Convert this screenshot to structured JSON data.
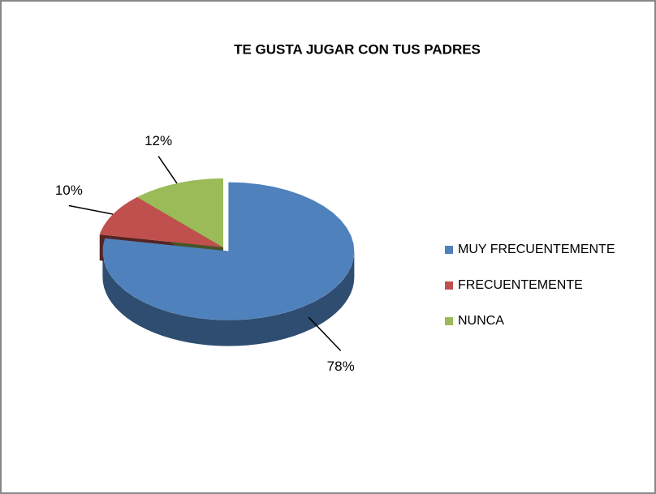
{
  "chart_data": {
    "type": "pie",
    "title": "TE GUSTA JUGAR CON TUS PADRES",
    "categories": [
      "MUY FRECUENTEMENTE",
      "FRECUENTEMENTE",
      "NUNCA"
    ],
    "values": [
      78,
      10,
      12
    ],
    "value_labels": [
      "78%",
      "10%",
      "12%"
    ],
    "colors": [
      "#4f81bd",
      "#c0504d",
      "#9bbb59"
    ],
    "legend": "right"
  }
}
